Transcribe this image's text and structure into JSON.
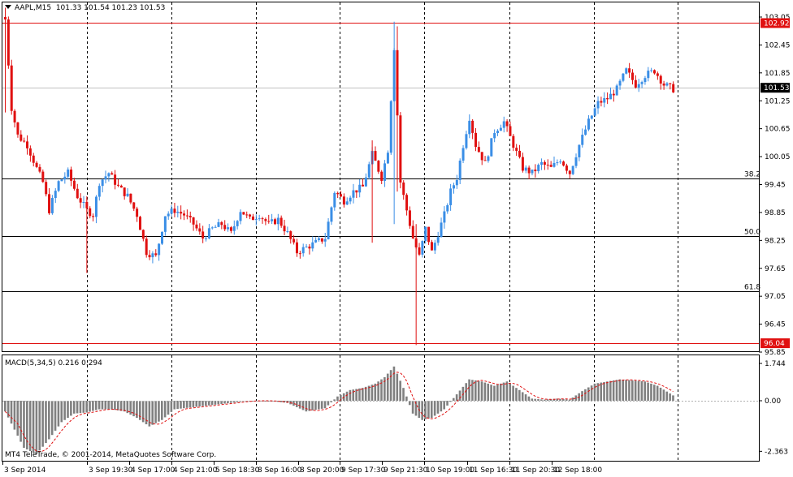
{
  "header": {
    "symbol": "AAPL,M15",
    "ohlc": "101.33 101.54 101.23 101.53"
  },
  "macd": {
    "label": "MACD(5,34,5) 0.216 0.294",
    "axis_labels": [
      "1.744",
      "0.00",
      "-2.363"
    ]
  },
  "copyright": "MT4 TeleTrade, © 2001-2014, MetaQuotes Software Corp.",
  "price_axis": {
    "ticks": [
      "103.05",
      "102.45",
      "101.85",
      "101.25",
      "100.65",
      "100.05",
      "99.45",
      "98.85",
      "98.25",
      "97.65",
      "97.05",
      "96.45",
      "95.85"
    ],
    "badges": [
      {
        "text": "102.92",
        "color": "#e01010"
      },
      {
        "text": "101.53",
        "color": "#000000"
      },
      {
        "text": "96.04",
        "color": "#e01010"
      }
    ]
  },
  "time_axis": {
    "ticks": [
      "3 Sep 2014",
      "3 Sep 19:30",
      "4 Sep 17:00",
      "4 Sep 21:00",
      "5 Sep 18:30",
      "8 Sep 16:00",
      "8 Sep 20:00",
      "9 Sep 17:30",
      "9 Sep 21:30",
      "10 Sep 19:00",
      "11 Sep 16:30",
      "11 Sep 20:30",
      "12 Sep 18:00"
    ]
  },
  "fibonacci": [
    {
      "label": "38.2",
      "price": 99.58
    },
    {
      "label": "50.0",
      "price": 98.35
    },
    {
      "label": "61.8",
      "price": 97.15
    }
  ],
  "colors": {
    "bull": "#3a8ee6",
    "bear": "#e01010",
    "macd_hist": "#808080",
    "signal": "#e01010",
    "grid": "#000000"
  },
  "chart_data": {
    "type": "candlestick",
    "price_range": [
      95.85,
      103.25
    ],
    "hlines": [
      102.92,
      96.04
    ],
    "current_price": 101.53,
    "price_keypoints": [
      [
        0,
        103.0
      ],
      [
        2,
        101.1
      ],
      [
        4,
        100.5
      ],
      [
        7,
        100.3
      ],
      [
        10,
        99.8
      ],
      [
        12,
        99.5
      ],
      [
        14,
        98.9
      ],
      [
        17,
        99.5
      ],
      [
        20,
        99.7
      ],
      [
        23,
        99.2
      ],
      [
        26,
        98.9
      ],
      [
        28,
        98.8
      ],
      [
        30,
        99.5
      ],
      [
        33,
        99.7
      ],
      [
        36,
        99.4
      ],
      [
        39,
        99.2
      ],
      [
        42,
        98.8
      ],
      [
        45,
        98.0
      ],
      [
        48,
        97.9
      ],
      [
        51,
        98.8
      ],
      [
        54,
        98.9
      ],
      [
        57,
        98.8
      ],
      [
        60,
        98.6
      ],
      [
        63,
        98.3
      ],
      [
        66,
        98.5
      ],
      [
        69,
        98.6
      ],
      [
        72,
        98.4
      ],
      [
        75,
        98.9
      ],
      [
        78,
        98.7
      ],
      [
        81,
        98.8
      ],
      [
        84,
        98.6
      ],
      [
        87,
        98.7
      ],
      [
        90,
        98.4
      ],
      [
        93,
        98.0
      ],
      [
        96,
        98.1
      ],
      [
        99,
        98.2
      ],
      [
        102,
        98.3
      ],
      [
        105,
        99.3
      ],
      [
        108,
        99.1
      ],
      [
        111,
        99.3
      ],
      [
        114,
        99.4
      ],
      [
        117,
        100.1
      ],
      [
        120,
        99.6
      ],
      [
        122,
        100.2
      ],
      [
        124,
        102.4
      ],
      [
        126,
        99.5
      ],
      [
        128,
        98.9
      ],
      [
        130,
        98.3
      ],
      [
        132,
        97.9
      ],
      [
        134,
        98.5
      ],
      [
        136,
        98.0
      ],
      [
        138,
        98.4
      ],
      [
        140,
        98.8
      ],
      [
        142,
        99.3
      ],
      [
        144,
        99.6
      ],
      [
        146,
        100.3
      ],
      [
        148,
        100.9
      ],
      [
        150,
        100.3
      ],
      [
        153,
        99.9
      ],
      [
        156,
        100.6
      ],
      [
        159,
        100.8
      ],
      [
        162,
        100.3
      ],
      [
        165,
        99.8
      ],
      [
        168,
        99.7
      ],
      [
        171,
        99.9
      ],
      [
        174,
        99.8
      ],
      [
        177,
        100.0
      ],
      [
        180,
        99.7
      ],
      [
        183,
        100.3
      ],
      [
        186,
        100.8
      ],
      [
        189,
        101.2
      ],
      [
        192,
        101.3
      ],
      [
        195,
        101.5
      ],
      [
        198,
        101.9
      ],
      [
        201,
        101.6
      ],
      [
        204,
        101.8
      ],
      [
        207,
        101.9
      ],
      [
        210,
        101.6
      ],
      [
        213,
        101.5
      ]
    ],
    "macd_range": [
      -2.6,
      1.9
    ],
    "macd_keypoints": [
      [
        0,
        -0.5
      ],
      [
        6,
        -2.2
      ],
      [
        10,
        -2.5
      ],
      [
        14,
        -1.8
      ],
      [
        18,
        -1.0
      ],
      [
        22,
        -0.6
      ],
      [
        26,
        -0.55
      ],
      [
        30,
        -0.4
      ],
      [
        34,
        -0.4
      ],
      [
        38,
        -0.5
      ],
      [
        42,
        -0.8
      ],
      [
        46,
        -1.2
      ],
      [
        50,
        -0.9
      ],
      [
        54,
        -0.4
      ],
      [
        60,
        -0.3
      ],
      [
        66,
        -0.2
      ],
      [
        72,
        -0.1
      ],
      [
        78,
        0.0
      ],
      [
        84,
        0.0
      ],
      [
        90,
        -0.1
      ],
      [
        96,
        -0.5
      ],
      [
        102,
        -0.35
      ],
      [
        106,
        0.2
      ],
      [
        110,
        0.5
      ],
      [
        114,
        0.6
      ],
      [
        118,
        0.8
      ],
      [
        121,
        1.1
      ],
      [
        124,
        1.6
      ],
      [
        127,
        0.6
      ],
      [
        130,
        -0.6
      ],
      [
        133,
        -0.9
      ],
      [
        136,
        -0.8
      ],
      [
        140,
        -0.4
      ],
      [
        144,
        0.3
      ],
      [
        148,
        1.0
      ],
      [
        152,
        0.9
      ],
      [
        156,
        0.7
      ],
      [
        160,
        0.9
      ],
      [
        164,
        0.5
      ],
      [
        168,
        0.1
      ],
      [
        172,
        0.05
      ],
      [
        176,
        0.1
      ],
      [
        180,
        0.05
      ],
      [
        184,
        0.45
      ],
      [
        188,
        0.8
      ],
      [
        192,
        0.9
      ],
      [
        196,
        1.0
      ],
      [
        200,
        0.95
      ],
      [
        204,
        0.9
      ],
      [
        208,
        0.7
      ],
      [
        213,
        0.25
      ]
    ]
  }
}
